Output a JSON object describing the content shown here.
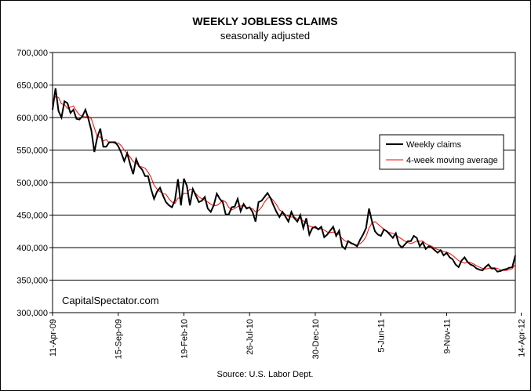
{
  "chart_data": {
    "type": "line",
    "title": "WEEKLY JOBLESS CLAIMS",
    "subtitle": "seasonally adjusted",
    "source": "Source: U.S. Labor Dept.",
    "watermark": "CapitalSpectator.com",
    "xlabel": "",
    "ylabel": "",
    "ylim": [
      300000,
      700000
    ],
    "y_ticks": [
      300000,
      350000,
      400000,
      450000,
      500000,
      550000,
      600000,
      650000,
      700000
    ],
    "y_tick_labels": [
      "300,000",
      "350,000",
      "400,000",
      "450,000",
      "500,000",
      "550,000",
      "600,000",
      "650,000",
      "700,000"
    ],
    "x_tick_labels": [
      "11-Apr-09",
      "15-Sep-09",
      "19-Feb-10",
      "26-Jul-10",
      "30-Dec-10",
      "5-Jun-11",
      "9-Nov-11",
      "14-Apr-12"
    ],
    "x_tick_weeks": [
      0,
      22,
      44,
      66,
      88,
      110,
      132,
      157
    ],
    "x_start": "11-Apr-09",
    "x_end": "14-Apr-12",
    "grid": true,
    "legend_position": "right",
    "colors": {
      "weekly": "#000000",
      "average": "#ff0000",
      "grid": "#000000",
      "plot_bg": "#ffffff"
    },
    "series": [
      {
        "name": "Weekly claims",
        "values": [
          612000,
          645000,
          610000,
          600000,
          625000,
          622000,
          607000,
          612000,
          598000,
          597000,
          602000,
          612000,
          598000,
          580000,
          547000,
          570000,
          583000,
          555000,
          555000,
          562000,
          562000,
          562000,
          556000,
          546000,
          533000,
          545000,
          528000,
          513000,
          536000,
          525000,
          520000,
          510000,
          510000,
          490000,
          475000,
          486000,
          492000,
          480000,
          470000,
          465000,
          462000,
          473000,
          505000,
          465000,
          506000,
          495000,
          465000,
          490000,
          480000,
          470000,
          472000,
          478000,
          460000,
          455000,
          465000,
          483000,
          475000,
          470000,
          451000,
          451000,
          462000,
          463000,
          475000,
          456000,
          467000,
          460000,
          462000,
          455000,
          440000,
          470000,
          472000,
          478000,
          484000,
          476000,
          465000,
          455000,
          447000,
          455000,
          448000,
          440000,
          455000,
          445000,
          440000,
          450000,
          430000,
          445000,
          420000,
          430000,
          432000,
          428000,
          432000,
          416000,
          420000,
          426000,
          432000,
          418000,
          426000,
          402000,
          398000,
          410000,
          407000,
          405000,
          402000,
          412000,
          420000,
          430000,
          460000,
          440000,
          425000,
          420000,
          418000,
          428000,
          425000,
          420000,
          415000,
          422000,
          405000,
          400000,
          405000,
          410000,
          410000,
          418000,
          415000,
          402000,
          408000,
          398000,
          402000,
          400000,
          396000,
          392000,
          396000,
          388000,
          392000,
          385000,
          382000,
          374000,
          370000,
          380000,
          385000,
          378000,
          374000,
          372000,
          368000,
          366000,
          365000,
          370000,
          374000,
          368000,
          368000,
          363000,
          364000,
          366000,
          367000,
          369000,
          370000,
          388000
        ],
        "color": "#000000"
      },
      {
        "name": "4-week moving average",
        "values": [
          625000,
          632000,
          631000,
          621000,
          620000,
          614000,
          616000,
          618000,
          610000,
          604000,
          602000,
          601000,
          602000,
          598000,
          584000,
          570000,
          570000,
          564000,
          566000,
          561000,
          562000,
          560000,
          561000,
          557000,
          550000,
          545000,
          539000,
          532000,
          530000,
          525000,
          524000,
          522000,
          516000,
          508000,
          496000,
          490000,
          486000,
          483000,
          482000,
          475000,
          470000,
          468000,
          476000,
          476000,
          484000,
          483000,
          490000,
          489000,
          483000,
          478000,
          475000,
          473000,
          470000,
          467000,
          464000,
          465000,
          468000,
          473000,
          470000,
          462000,
          458000,
          460000,
          463000,
          464000,
          464000,
          462000,
          461000,
          460000,
          455000,
          457000,
          462000,
          470000,
          476000,
          477000,
          472000,
          466000,
          458000,
          455000,
          451000,
          448000,
          447000,
          447000,
          444000,
          445000,
          441000,
          437000,
          433000,
          432000,
          430000,
          428000,
          429000,
          427000,
          424000,
          423000,
          424000,
          422000,
          420000,
          414000,
          410000,
          409000,
          406000,
          405000,
          404000,
          406000,
          410000,
          417000,
          430000,
          438000,
          440000,
          436000,
          432000,
          428000,
          425000,
          423000,
          422000,
          420000,
          416000,
          413000,
          410000,
          408000,
          406000,
          408000,
          410000,
          410000,
          410000,
          406000,
          404000,
          402000,
          399000,
          397000,
          396000,
          394000,
          393000,
          391000,
          388000,
          384000,
          380000,
          378000,
          376000,
          378000,
          377000,
          375000,
          372000,
          370000,
          368000,
          367000,
          368000,
          369000,
          369000,
          368000,
          366000,
          365000,
          365000,
          366000,
          368000,
          374000
        ],
        "color": "#ff0000"
      }
    ]
  }
}
